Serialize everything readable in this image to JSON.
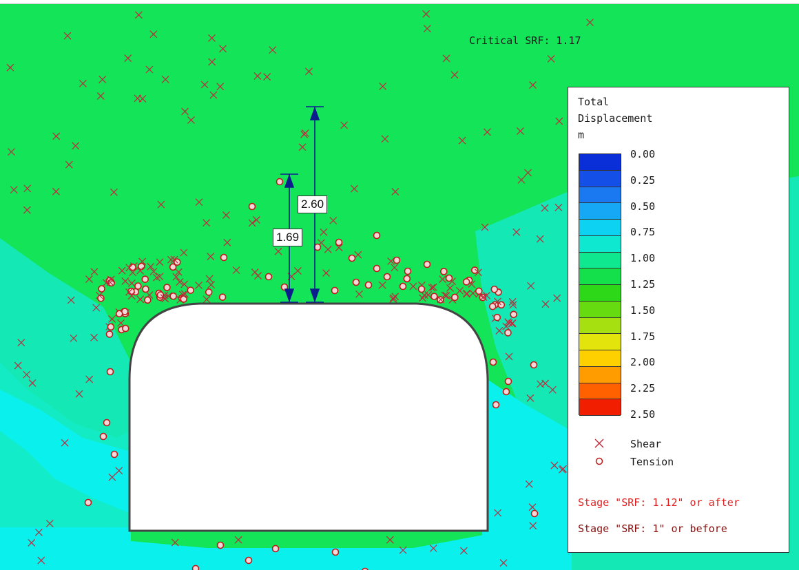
{
  "critical_srf": "Critical SRF: 1.17",
  "dimensions": [
    {
      "label": "1.69"
    },
    {
      "label": "2.60"
    }
  ],
  "legend": {
    "title_line1": "Total",
    "title_line2": "Displacement",
    "unit": "m",
    "ticks": [
      "0.00",
      "0.25",
      "0.50",
      "0.75",
      "1.00",
      "1.25",
      "1.50",
      "1.75",
      "2.00",
      "2.25",
      "2.50"
    ],
    "colors": [
      "#0a2fd8",
      "#1450e8",
      "#1a78f0",
      "#16a8f4",
      "#0ed2f2",
      "#0ee8d0",
      "#10e890",
      "#14e04c",
      "#2cd818",
      "#66dc10",
      "#a6e010",
      "#e2e40c",
      "#ffd000",
      "#ff9c00",
      "#ff6000",
      "#f21e00"
    ],
    "shear_label": "Shear",
    "tension_label": "Tension",
    "stage_recent": "Stage \"SRF: 1.12\" or after",
    "stage_earlier": "Stage \"SRF: 1\" or before",
    "stage_recent_color": "#e02020",
    "stage_earlier_color": "#8a1010"
  },
  "colors": {
    "green": "#14e458",
    "green_dark": "#18dc58",
    "teal": "#14e8b4",
    "cyan": "#0af0ec",
    "marker_shear": "#c0283c",
    "marker_tension": "#c01818",
    "dim_arrow": "#0c1e8c"
  }
}
